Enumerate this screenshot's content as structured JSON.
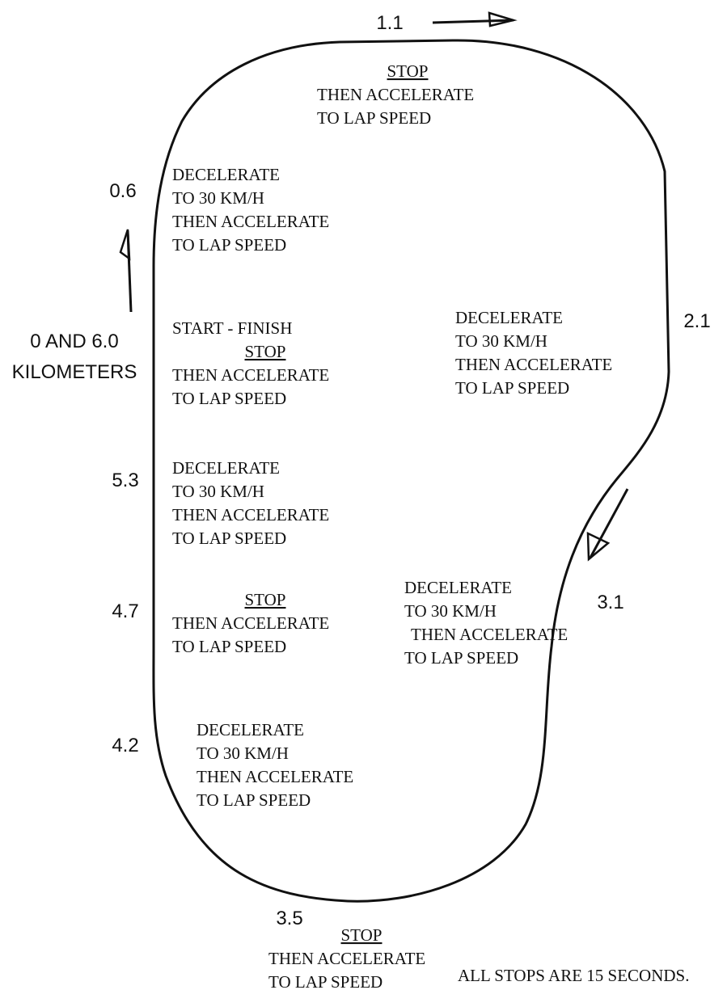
{
  "markers": [
    {
      "lines": [
        "1.1"
      ]
    },
    {
      "lines": [
        "0.6"
      ]
    },
    {
      "lines": [
        "0 AND 6.0",
        "KILOMETERS"
      ]
    },
    {
      "lines": [
        "2.1"
      ]
    },
    {
      "lines": [
        "5.3"
      ]
    },
    {
      "lines": [
        "4.7"
      ]
    },
    {
      "lines": [
        "3.1"
      ]
    },
    {
      "lines": [
        "4.2"
      ]
    },
    {
      "lines": [
        "3.5"
      ]
    }
  ],
  "instructions": [
    {
      "stop": "STOP",
      "lines": [
        "THEN ACCELERATE",
        "TO LAP SPEED"
      ]
    },
    {
      "lines": [
        "DECELERATE",
        "TO 30 KM/H",
        "THEN ACCELERATE",
        "TO LAP SPEED"
      ]
    },
    {
      "heading": "START - FINISH",
      "stop": "STOP",
      "lines": [
        "THEN ACCELERATE",
        "TO LAP SPEED"
      ]
    },
    {
      "lines": [
        "DECELERATE",
        "TO 30 KM/H",
        "THEN ACCELERATE",
        "TO LAP SPEED"
      ]
    },
    {
      "lines": [
        "DECELERATE",
        "TO 30 KM/H",
        "THEN ACCELERATE",
        "TO LAP SPEED"
      ]
    },
    {
      "stop": "STOP",
      "lines": [
        "THEN ACCELERATE",
        "TO LAP SPEED"
      ]
    },
    {
      "lines": [
        "DECELERATE",
        "TO 30 KM/H",
        "THEN ACCELERATE",
        "TO LAP SPEED"
      ]
    },
    {
      "lines": [
        "DECELERATE",
        "TO 30 KM/H",
        "THEN ACCELERATE",
        "TO LAP SPEED"
      ]
    },
    {
      "stop": "STOP",
      "lines": [
        "THEN ACCELERATE",
        "TO LAP SPEED"
      ]
    }
  ],
  "note": "ALL STOPS ARE 15 SECONDS."
}
